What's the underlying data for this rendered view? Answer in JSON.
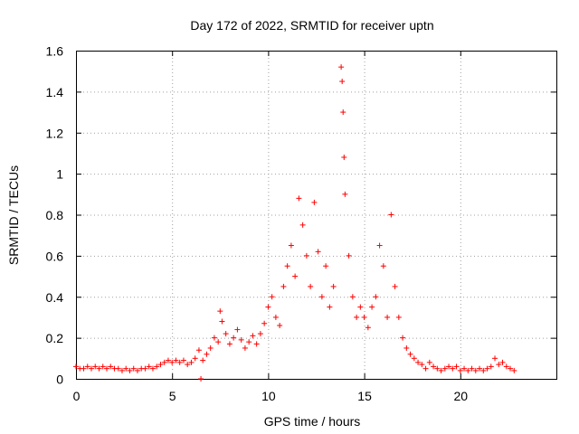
{
  "chart_data": {
    "type": "scatter",
    "title": "Day 172 of 2022, SRMTID for receiver uptn",
    "xlabel": "GPS time / hours",
    "ylabel": "SRMTID / TECUs",
    "xlim": [
      0,
      25
    ],
    "ylim": [
      0,
      1.6
    ],
    "x_ticks": [
      0,
      5,
      10,
      15,
      20
    ],
    "x_tick_labels": [
      "0",
      "5",
      "10",
      "15",
      "20"
    ],
    "y_ticks": [
      0,
      0.2,
      0.4,
      0.6,
      0.8,
      1,
      1.2,
      1.4,
      1.6
    ],
    "y_tick_labels": [
      "0",
      "0.2",
      "0.4",
      "0.6",
      "0.8",
      "1",
      "1.2",
      "1.4",
      "1.6"
    ],
    "grid": true,
    "marker": "plus",
    "color": "#ff0000",
    "series": [
      {
        "name": "SRMTID",
        "points": [
          [
            0.0,
            0.06
          ],
          [
            0.2,
            0.05
          ],
          [
            0.4,
            0.05
          ],
          [
            0.6,
            0.06
          ],
          [
            0.8,
            0.05
          ],
          [
            1.0,
            0.06
          ],
          [
            1.2,
            0.05
          ],
          [
            1.4,
            0.06
          ],
          [
            1.6,
            0.05
          ],
          [
            1.8,
            0.06
          ],
          [
            2.0,
            0.05
          ],
          [
            2.2,
            0.05
          ],
          [
            2.4,
            0.04
          ],
          [
            2.6,
            0.05
          ],
          [
            2.8,
            0.04
          ],
          [
            3.0,
            0.05
          ],
          [
            3.2,
            0.04
          ],
          [
            3.4,
            0.05
          ],
          [
            3.6,
            0.05
          ],
          [
            3.8,
            0.06
          ],
          [
            4.0,
            0.05
          ],
          [
            4.2,
            0.06
          ],
          [
            4.4,
            0.07
          ],
          [
            4.6,
            0.08
          ],
          [
            4.8,
            0.09
          ],
          [
            5.0,
            0.08
          ],
          [
            5.2,
            0.09
          ],
          [
            5.4,
            0.08
          ],
          [
            5.6,
            0.09
          ],
          [
            5.8,
            0.07
          ],
          [
            6.0,
            0.08
          ],
          [
            6.2,
            0.1
          ],
          [
            6.4,
            0.14
          ],
          [
            6.5,
            0.0
          ],
          [
            6.6,
            0.09
          ],
          [
            6.8,
            0.12
          ],
          [
            7.0,
            0.15
          ],
          [
            7.2,
            0.2
          ],
          [
            7.4,
            0.18
          ],
          [
            7.5,
            0.33
          ],
          [
            7.6,
            0.28
          ],
          [
            7.8,
            0.22
          ],
          [
            8.0,
            0.17
          ],
          [
            8.2,
            0.2
          ],
          [
            8.4,
            0.24
          ],
          [
            8.6,
            0.19
          ],
          [
            8.8,
            0.15
          ],
          [
            9.0,
            0.18
          ],
          [
            9.2,
            0.21
          ],
          [
            9.4,
            0.17
          ],
          [
            9.6,
            0.22
          ],
          [
            9.8,
            0.27
          ],
          [
            10.0,
            0.35
          ],
          [
            10.2,
            0.4
          ],
          [
            10.4,
            0.3
          ],
          [
            10.6,
            0.26
          ],
          [
            10.8,
            0.45
          ],
          [
            11.0,
            0.55
          ],
          [
            11.2,
            0.65
          ],
          [
            11.4,
            0.5
          ],
          [
            11.6,
            0.88
          ],
          [
            11.8,
            0.75
          ],
          [
            12.0,
            0.6
          ],
          [
            12.2,
            0.45
          ],
          [
            12.4,
            0.86
          ],
          [
            12.6,
            0.62
          ],
          [
            12.8,
            0.4
          ],
          [
            13.0,
            0.55
          ],
          [
            13.2,
            0.35
          ],
          [
            13.4,
            0.45
          ],
          [
            13.8,
            1.52
          ],
          [
            13.85,
            1.45
          ],
          [
            13.9,
            1.3
          ],
          [
            13.95,
            1.08
          ],
          [
            14.0,
            0.9
          ],
          [
            14.2,
            0.6
          ],
          [
            14.4,
            0.4
          ],
          [
            14.6,
            0.3
          ],
          [
            14.8,
            0.35
          ],
          [
            15.0,
            0.3
          ],
          [
            15.2,
            0.25
          ],
          [
            15.4,
            0.35
          ],
          [
            15.6,
            0.4
          ],
          [
            15.8,
            0.65
          ],
          [
            16.0,
            0.55
          ],
          [
            16.2,
            0.3
          ],
          [
            16.4,
            0.8
          ],
          [
            16.6,
            0.45
          ],
          [
            16.8,
            0.3
          ],
          [
            17.0,
            0.2
          ],
          [
            17.2,
            0.15
          ],
          [
            17.4,
            0.12
          ],
          [
            17.6,
            0.1
          ],
          [
            17.8,
            0.08
          ],
          [
            18.0,
            0.07
          ],
          [
            18.2,
            0.05
          ],
          [
            18.4,
            0.08
          ],
          [
            18.6,
            0.06
          ],
          [
            18.8,
            0.05
          ],
          [
            19.0,
            0.04
          ],
          [
            19.2,
            0.05
          ],
          [
            19.4,
            0.06
          ],
          [
            19.6,
            0.05
          ],
          [
            19.8,
            0.06
          ],
          [
            20.0,
            0.04
          ],
          [
            20.2,
            0.05
          ],
          [
            20.4,
            0.04
          ],
          [
            20.6,
            0.05
          ],
          [
            20.8,
            0.04
          ],
          [
            21.0,
            0.05
          ],
          [
            21.2,
            0.04
          ],
          [
            21.4,
            0.05
          ],
          [
            21.6,
            0.06
          ],
          [
            21.8,
            0.1
          ],
          [
            22.0,
            0.07
          ],
          [
            22.2,
            0.08
          ],
          [
            22.4,
            0.06
          ],
          [
            22.6,
            0.05
          ],
          [
            22.8,
            0.04
          ]
        ]
      }
    ]
  }
}
